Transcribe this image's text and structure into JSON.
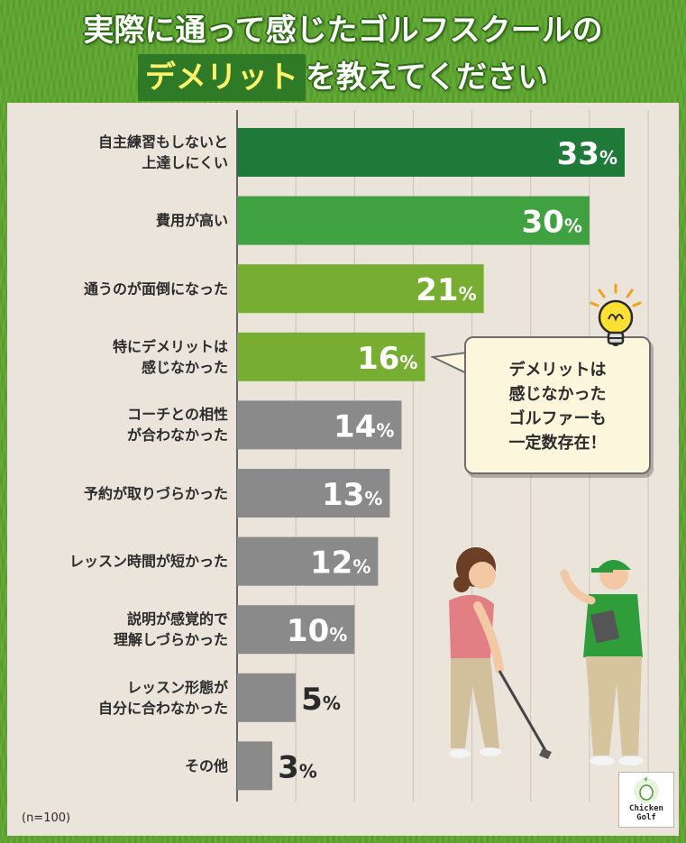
{
  "title": {
    "line1": "実際に通って感じたゴルフスクールの",
    "line2_highlight": "デメリット",
    "line2_rest": "を教えてください"
  },
  "colors": {
    "dark_green": "#1f7a3a",
    "mid_green": "#3fa13f",
    "light_green": "#77ad31",
    "gray": "#8a8a8a",
    "panel": "#eae4da",
    "grass": "#5da62f",
    "highlight_text": "#fff36b"
  },
  "chart_data": {
    "type": "bar",
    "orientation": "horizontal",
    "categories": [
      "自主練習もしないと\n上達しにくい",
      "費用が高い",
      "通うのが面倒になった",
      "特にデメリットは\n感じなかった",
      "コーチとの相性\nが合わなかった",
      "予約が取りづらかった",
      "レッスン時間が短かった",
      "説明が感覚的で\n理解しづらかった",
      "レッスン形態が\n自分に合わなかった",
      "その他"
    ],
    "values": [
      33,
      30,
      21,
      16,
      14,
      13,
      12,
      10,
      5,
      3
    ],
    "value_suffix": "%",
    "bar_colors": [
      "#1f7a3a",
      "#3fa13f",
      "#77ad31",
      "#77ad31",
      "#8a8a8a",
      "#8a8a8a",
      "#8a8a8a",
      "#8a8a8a",
      "#8a8a8a",
      "#8a8a8a"
    ],
    "xlim": [
      0,
      37
    ],
    "grid": true,
    "grid_step": 5,
    "note": "(n=100)"
  },
  "callout": {
    "text": "デメリットは\n感じなかった\nゴルファーも\n一定数存在！"
  },
  "logo": {
    "text": "Chicken\nGolf"
  },
  "icons": {
    "bulb": "lightbulb-icon",
    "illustration": "golf-coach-and-student-illustration",
    "logo": "chicken-golf-logo"
  }
}
